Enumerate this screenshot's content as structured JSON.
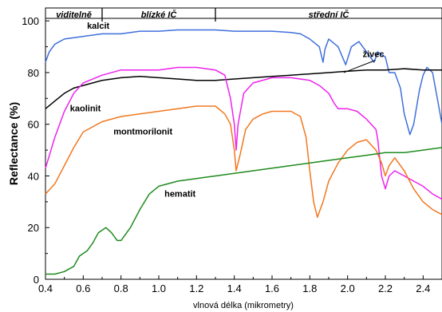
{
  "chart_data": {
    "type": "line",
    "title": "",
    "xlabel": "vlnová délka (mikrometry)",
    "ylabel": "Reflectance (%)",
    "xlim": [
      0.4,
      2.5
    ],
    "ylim": [
      0,
      105
    ],
    "x_ticks": [
      "0.4",
      "0.6",
      "0.8",
      "1.0",
      "1.2",
      "1.4",
      "1.6",
      "1.8",
      "2.0",
      "2.2",
      "2.4"
    ],
    "y_ticks": [
      "0",
      "20",
      "40",
      "60",
      "80",
      "100"
    ],
    "grid": false,
    "legend": "none",
    "regions": [
      {
        "label": "viditelně",
        "x_start": 0.4,
        "x_end": 0.7
      },
      {
        "label": "blízké IČ",
        "x_start": 0.7,
        "x_end": 1.3
      },
      {
        "label": "střední IČ",
        "x_start": 1.3,
        "x_end": 2.5
      }
    ],
    "series": [
      {
        "name": "kalcit",
        "color": "#3f6fdc",
        "label_at": [
          0.62,
          97
        ],
        "points": [
          [
            0.4,
            84
          ],
          [
            0.42,
            88
          ],
          [
            0.45,
            91
          ],
          [
            0.5,
            93
          ],
          [
            0.6,
            94
          ],
          [
            0.7,
            95
          ],
          [
            0.8,
            95
          ],
          [
            0.9,
            96
          ],
          [
            1.0,
            96
          ],
          [
            1.1,
            96.5
          ],
          [
            1.2,
            96.5
          ],
          [
            1.3,
            96.5
          ],
          [
            1.4,
            96
          ],
          [
            1.5,
            96
          ],
          [
            1.6,
            96
          ],
          [
            1.7,
            95.5
          ],
          [
            1.75,
            95
          ],
          [
            1.8,
            93
          ],
          [
            1.85,
            90
          ],
          [
            1.87,
            84
          ],
          [
            1.88,
            89
          ],
          [
            1.9,
            93
          ],
          [
            1.95,
            90
          ],
          [
            1.99,
            83
          ],
          [
            2.02,
            90
          ],
          [
            2.06,
            92
          ],
          [
            2.1,
            88
          ],
          [
            2.14,
            84
          ],
          [
            2.16,
            88
          ],
          [
            2.2,
            86
          ],
          [
            2.22,
            80
          ],
          [
            2.25,
            80
          ],
          [
            2.28,
            74
          ],
          [
            2.3,
            64
          ],
          [
            2.33,
            56
          ],
          [
            2.35,
            60
          ],
          [
            2.38,
            73
          ],
          [
            2.4,
            79
          ],
          [
            2.42,
            82
          ],
          [
            2.45,
            80
          ],
          [
            2.48,
            68
          ],
          [
            2.5,
            60
          ]
        ]
      },
      {
        "name": "živec",
        "color": "#000000",
        "label_at": [
          2.08,
          86
        ],
        "arrow_to": [
          1.98,
          80
        ],
        "points": [
          [
            0.4,
            66
          ],
          [
            0.45,
            69
          ],
          [
            0.5,
            72
          ],
          [
            0.55,
            74
          ],
          [
            0.6,
            75
          ],
          [
            0.7,
            77
          ],
          [
            0.8,
            78
          ],
          [
            0.9,
            78.5
          ],
          [
            1.0,
            78
          ],
          [
            1.1,
            77.5
          ],
          [
            1.2,
            77
          ],
          [
            1.3,
            77
          ],
          [
            1.4,
            77.5
          ],
          [
            1.5,
            78
          ],
          [
            1.6,
            78.5
          ],
          [
            1.7,
            79
          ],
          [
            1.8,
            79.5
          ],
          [
            1.9,
            80
          ],
          [
            2.0,
            80.5
          ],
          [
            2.1,
            81
          ],
          [
            2.2,
            81
          ],
          [
            2.3,
            81.5
          ],
          [
            2.4,
            81
          ],
          [
            2.5,
            81
          ]
        ]
      },
      {
        "name": "kaolinit",
        "color": "#ee22ee",
        "label_at": [
          0.53,
          65
        ],
        "points": [
          [
            0.4,
            43
          ],
          [
            0.45,
            55
          ],
          [
            0.5,
            65
          ],
          [
            0.55,
            72
          ],
          [
            0.6,
            76
          ],
          [
            0.7,
            79
          ],
          [
            0.8,
            81
          ],
          [
            0.9,
            81
          ],
          [
            1.0,
            81
          ],
          [
            1.1,
            82
          ],
          [
            1.2,
            82
          ],
          [
            1.3,
            81
          ],
          [
            1.35,
            79
          ],
          [
            1.38,
            70
          ],
          [
            1.39,
            65
          ],
          [
            1.4,
            60
          ],
          [
            1.41,
            50
          ],
          [
            1.42,
            60
          ],
          [
            1.45,
            72
          ],
          [
            1.5,
            76
          ],
          [
            1.6,
            78
          ],
          [
            1.7,
            78
          ],
          [
            1.8,
            77
          ],
          [
            1.85,
            75
          ],
          [
            1.9,
            72
          ],
          [
            1.93,
            68
          ],
          [
            1.95,
            66
          ],
          [
            2.0,
            66
          ],
          [
            2.05,
            65
          ],
          [
            2.1,
            62
          ],
          [
            2.15,
            58
          ],
          [
            2.16,
            54
          ],
          [
            2.18,
            40
          ],
          [
            2.2,
            35
          ],
          [
            2.22,
            40
          ],
          [
            2.25,
            42
          ],
          [
            2.3,
            40
          ],
          [
            2.35,
            38
          ],
          [
            2.4,
            36
          ],
          [
            2.45,
            33
          ],
          [
            2.5,
            31
          ]
        ]
      },
      {
        "name": "montmorilonit",
        "color": "#f07820",
        "label_at": [
          0.76,
          56
        ],
        "points": [
          [
            0.4,
            33
          ],
          [
            0.45,
            37
          ],
          [
            0.5,
            44
          ],
          [
            0.55,
            51
          ],
          [
            0.6,
            57
          ],
          [
            0.7,
            61
          ],
          [
            0.8,
            63
          ],
          [
            0.9,
            64
          ],
          [
            1.0,
            65
          ],
          [
            1.1,
            66
          ],
          [
            1.2,
            67
          ],
          [
            1.25,
            67
          ],
          [
            1.3,
            67
          ],
          [
            1.35,
            64
          ],
          [
            1.38,
            60
          ],
          [
            1.4,
            50
          ],
          [
            1.41,
            42
          ],
          [
            1.43,
            48
          ],
          [
            1.46,
            58
          ],
          [
            1.5,
            62
          ],
          [
            1.55,
            64
          ],
          [
            1.6,
            65
          ],
          [
            1.7,
            65
          ],
          [
            1.75,
            63
          ],
          [
            1.78,
            55
          ],
          [
            1.8,
            42
          ],
          [
            1.82,
            30
          ],
          [
            1.84,
            24
          ],
          [
            1.87,
            30
          ],
          [
            1.9,
            38
          ],
          [
            1.95,
            45
          ],
          [
            2.0,
            50
          ],
          [
            2.05,
            53
          ],
          [
            2.1,
            54
          ],
          [
            2.15,
            50
          ],
          [
            2.18,
            45
          ],
          [
            2.2,
            40
          ],
          [
            2.22,
            44
          ],
          [
            2.25,
            47
          ],
          [
            2.3,
            42
          ],
          [
            2.35,
            35
          ],
          [
            2.4,
            30
          ],
          [
            2.45,
            27
          ],
          [
            2.5,
            25
          ]
        ]
      },
      {
        "name": "hematit",
        "color": "#1e8a1e",
        "label_at": [
          1.03,
          32
        ],
        "points": [
          [
            0.4,
            2
          ],
          [
            0.45,
            2
          ],
          [
            0.5,
            3
          ],
          [
            0.55,
            5
          ],
          [
            0.58,
            9
          ],
          [
            0.62,
            11
          ],
          [
            0.65,
            14
          ],
          [
            0.68,
            18
          ],
          [
            0.72,
            20
          ],
          [
            0.75,
            18
          ],
          [
            0.78,
            15
          ],
          [
            0.8,
            15
          ],
          [
            0.85,
            20
          ],
          [
            0.9,
            27
          ],
          [
            0.95,
            33
          ],
          [
            1.0,
            36
          ],
          [
            1.1,
            38
          ],
          [
            1.2,
            39
          ],
          [
            1.3,
            40
          ],
          [
            1.4,
            41
          ],
          [
            1.5,
            42
          ],
          [
            1.6,
            43
          ],
          [
            1.7,
            44
          ],
          [
            1.8,
            45
          ],
          [
            1.9,
            46
          ],
          [
            2.0,
            47
          ],
          [
            2.1,
            48
          ],
          [
            2.2,
            49
          ],
          [
            2.3,
            49
          ],
          [
            2.4,
            50
          ],
          [
            2.5,
            51
          ]
        ]
      }
    ]
  }
}
